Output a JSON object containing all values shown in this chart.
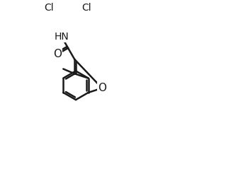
{
  "background_color": "#ffffff",
  "line_color": "#1a1a1a",
  "line_width": 1.8,
  "font_size": 10,
  "figsize": [
    3.26,
    2.56
  ],
  "dpi": 100,
  "xlim": [
    0,
    9.5
  ],
  "ylim": [
    -1.5,
    8.0
  ]
}
